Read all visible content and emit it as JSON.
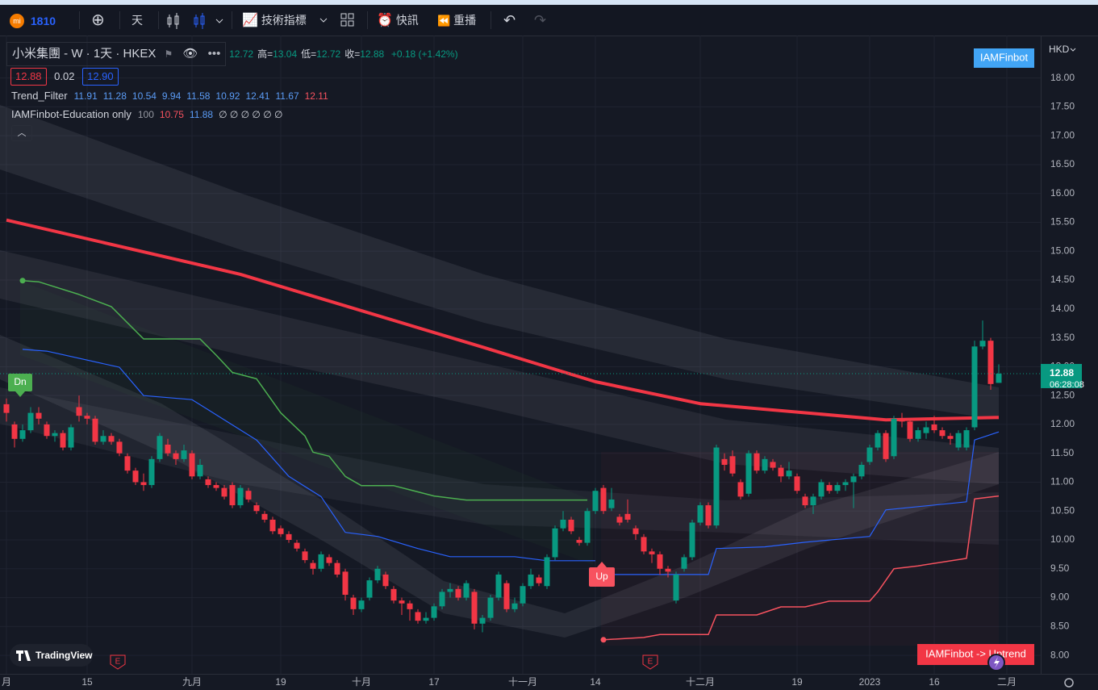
{
  "toolbar": {
    "symbol_icon": "mi",
    "symbol": "1810",
    "interval": "天",
    "indicators": "技術指標",
    "alerts": "快訊",
    "replay": "重播"
  },
  "legend": {
    "title": "小米集團 - W · 1天 · HKEX",
    "ohlc": [
      {
        "value": "12.72"
      },
      {
        "label": "高=",
        "value": "13.04"
      },
      {
        "label": "低=",
        "value": "12.72"
      },
      {
        "label": "收=",
        "value": "12.88"
      }
    ],
    "change": "+0.18 (+1.42%)",
    "bid": "12.88",
    "spread": "0.02",
    "ask": "12.90",
    "indicators": [
      {
        "name": "Trend_Filter",
        "values": [
          {
            "text": "11.91",
            "color": "#5b9cf6"
          },
          {
            "text": "11.28",
            "color": "#5b9cf6"
          },
          {
            "text": "10.54",
            "color": "#5b9cf6"
          },
          {
            "text": "9.94",
            "color": "#5b9cf6"
          },
          {
            "text": "11.58",
            "color": "#5b9cf6"
          },
          {
            "text": "10.92",
            "color": "#5b9cf6"
          },
          {
            "text": "12.41",
            "color": "#5b9cf6"
          },
          {
            "text": "11.67",
            "color": "#5b9cf6"
          },
          {
            "text": "12.11",
            "color": "#f7525f"
          }
        ]
      },
      {
        "name": "IAMFinbot-Education only",
        "values": [
          {
            "text": "100",
            "color": "#9598a1"
          },
          {
            "text": "10.75",
            "color": "#f7525f"
          },
          {
            "text": "11.88",
            "color": "#5b9cf6"
          },
          {
            "text": "∅ ∅ ∅ ∅ ∅ ∅",
            "color": "#d1d4dc"
          }
        ]
      }
    ]
  },
  "badge": "IAMFinbot",
  "status": "IAMFinbot -> Uptrend",
  "currency": "HKD",
  "watermark": "TradingView",
  "events": [
    "E",
    "E"
  ],
  "chart_data": {
    "type": "candlestick",
    "up_color": "#089981",
    "down_color": "#f23645",
    "grid": true,
    "ylim": [
      7.68,
      18.68
    ],
    "yticks": [
      {
        "value": 8,
        "label": "8.00"
      },
      {
        "value": 8.5,
        "label": "8.50"
      },
      {
        "value": 9,
        "label": "9.00"
      },
      {
        "value": 9.5,
        "label": "9.50"
      },
      {
        "value": 10,
        "label": "10.00"
      },
      {
        "value": 10.5,
        "label": "10.50"
      },
      {
        "value": 11,
        "label": "11.00"
      },
      {
        "value": 11.5,
        "label": "11.50"
      },
      {
        "value": 12,
        "label": "12.00"
      },
      {
        "value": 12.5,
        "label": "12.50"
      },
      {
        "value": 13,
        "label": "13.00"
      },
      {
        "value": 13.5,
        "label": "13.50"
      },
      {
        "value": 14,
        "label": "14.00"
      },
      {
        "value": 14.5,
        "label": "14.50"
      },
      {
        "value": 15,
        "label": "15.00"
      },
      {
        "value": 15.5,
        "label": "15.50"
      },
      {
        "value": 16,
        "label": "16.00"
      },
      {
        "value": 16.5,
        "label": "16.50"
      },
      {
        "value": 17,
        "label": "17.00"
      },
      {
        "value": 17.5,
        "label": "17.50"
      },
      {
        "value": 18,
        "label": "18.00"
      }
    ],
    "categories": [
      "月",
      null,
      null,
      null,
      null,
      null,
      null,
      null,
      null,
      null,
      "15",
      null,
      null,
      null,
      null,
      null,
      null,
      null,
      null,
      null,
      null,
      null,
      null,
      "九月",
      null,
      null,
      null,
      null,
      null,
      null,
      null,
      null,
      null,
      null,
      "19",
      null,
      null,
      null,
      null,
      null,
      null,
      null,
      null,
      null,
      "十月",
      null,
      null,
      null,
      null,
      null,
      null,
      null,
      null,
      "17",
      null,
      null,
      null,
      null,
      null,
      null,
      null,
      null,
      null,
      null,
      "十一月",
      null,
      null,
      null,
      null,
      null,
      null,
      null,
      null,
      "14",
      null,
      null,
      null,
      null,
      null,
      null,
      null,
      null,
      null,
      null,
      null,
      null,
      "十二月",
      null,
      null,
      null,
      null,
      null,
      null,
      null,
      null,
      null,
      null,
      null,
      "19",
      null,
      null,
      null,
      null,
      null,
      null,
      null,
      null,
      "2023",
      null,
      null,
      null,
      null,
      null,
      null,
      null,
      "16",
      null,
      null,
      null,
      null,
      null,
      null,
      null,
      null,
      "二月"
    ],
    "candles": [
      [
        12.35,
        12.45,
        12.05,
        12.2
      ],
      [
        12.0,
        12.05,
        11.6,
        11.75
      ],
      [
        11.75,
        12.0,
        11.7,
        11.9
      ],
      [
        11.9,
        12.3,
        11.85,
        12.2
      ],
      [
        12.2,
        12.3,
        12.0,
        12.1
      ],
      [
        12.0,
        12.05,
        11.75,
        11.8
      ],
      [
        11.8,
        11.9,
        11.7,
        11.85
      ],
      [
        11.85,
        11.9,
        11.55,
        11.6
      ],
      [
        11.6,
        12.0,
        11.55,
        11.95
      ],
      [
        12.3,
        12.5,
        12.05,
        12.15
      ],
      [
        12.15,
        12.2,
        12.0,
        12.1
      ],
      [
        12.1,
        12.15,
        11.65,
        11.7
      ],
      [
        11.7,
        11.9,
        11.65,
        11.8
      ],
      [
        11.8,
        11.85,
        11.65,
        11.7
      ],
      [
        11.7,
        11.75,
        11.45,
        11.5
      ],
      [
        11.45,
        11.5,
        11.15,
        11.2
      ],
      [
        11.2,
        11.25,
        10.95,
        11.0
      ],
      [
        11.0,
        11.15,
        10.85,
        10.95
      ],
      [
        10.95,
        11.45,
        10.9,
        11.4
      ],
      [
        11.4,
        11.85,
        11.35,
        11.8
      ],
      [
        11.65,
        11.75,
        11.45,
        11.5
      ],
      [
        11.5,
        11.55,
        11.3,
        11.4
      ],
      [
        11.4,
        11.65,
        11.35,
        11.55
      ],
      [
        11.5,
        11.55,
        11.05,
        11.1
      ],
      [
        11.1,
        11.4,
        11.05,
        11.3
      ],
      [
        11.05,
        11.1,
        10.9,
        10.95
      ],
      [
        10.95,
        11.0,
        10.85,
        10.9
      ],
      [
        10.9,
        10.95,
        10.7,
        10.75
      ],
      [
        10.95,
        11.0,
        10.55,
        10.6
      ],
      [
        10.6,
        10.95,
        10.55,
        10.9
      ],
      [
        10.85,
        10.9,
        10.65,
        10.7
      ],
      [
        10.6,
        10.65,
        10.45,
        10.5
      ],
      [
        10.45,
        10.5,
        10.3,
        10.35
      ],
      [
        10.35,
        10.4,
        10.1,
        10.15
      ],
      [
        10.2,
        10.25,
        10.05,
        10.1
      ],
      [
        10.1,
        10.15,
        9.95,
        10.0
      ],
      [
        9.95,
        10.0,
        9.8,
        9.85
      ],
      [
        9.8,
        9.85,
        9.6,
        9.65
      ],
      [
        9.6,
        9.65,
        9.4,
        9.5
      ],
      [
        9.5,
        9.8,
        9.45,
        9.75
      ],
      [
        9.7,
        9.75,
        9.55,
        9.6
      ],
      [
        9.6,
        9.65,
        9.35,
        9.4
      ],
      [
        9.45,
        9.5,
        8.95,
        9.05
      ],
      [
        9.0,
        9.05,
        8.7,
        8.8
      ],
      [
        8.8,
        9.0,
        8.75,
        8.95
      ],
      [
        9.0,
        9.35,
        8.95,
        9.3
      ],
      [
        9.3,
        9.55,
        9.25,
        9.5
      ],
      [
        9.4,
        9.45,
        9.15,
        9.2
      ],
      [
        9.15,
        9.2,
        8.9,
        8.95
      ],
      [
        8.95,
        9.0,
        8.7,
        8.9
      ],
      [
        8.9,
        8.95,
        8.6,
        8.8
      ],
      [
        8.75,
        8.8,
        8.55,
        8.6
      ],
      [
        8.6,
        8.75,
        8.55,
        8.65
      ],
      [
        8.65,
        8.9,
        8.6,
        8.85
      ],
      [
        8.85,
        9.15,
        8.8,
        9.1
      ],
      [
        9.1,
        9.25,
        9.0,
        9.15
      ],
      [
        9.15,
        9.2,
        8.95,
        9.0
      ],
      [
        9.0,
        9.3,
        8.95,
        9.25
      ],
      [
        9.1,
        9.15,
        8.45,
        8.55
      ],
      [
        8.55,
        8.7,
        8.4,
        8.65
      ],
      [
        8.65,
        9.05,
        8.6,
        9.0
      ],
      [
        9.0,
        9.45,
        8.95,
        9.4
      ],
      [
        9.25,
        9.3,
        8.75,
        8.8
      ],
      [
        8.8,
        9.0,
        8.75,
        8.9
      ],
      [
        8.9,
        9.25,
        8.85,
        9.2
      ],
      [
        9.2,
        9.5,
        9.15,
        9.4
      ],
      [
        9.35,
        9.4,
        9.2,
        9.25
      ],
      [
        9.2,
        9.75,
        9.15,
        9.7
      ],
      [
        9.7,
        10.25,
        9.65,
        10.2
      ],
      [
        10.2,
        10.5,
        10.15,
        10.35
      ],
      [
        10.35,
        10.4,
        10.1,
        10.15
      ],
      [
        10.0,
        10.05,
        9.9,
        9.95
      ],
      [
        9.95,
        10.55,
        9.9,
        10.5
      ],
      [
        10.5,
        10.9,
        10.45,
        10.85
      ],
      [
        10.9,
        10.95,
        10.45,
        10.5
      ],
      [
        10.55,
        10.9,
        10.5,
        10.7
      ],
      [
        10.4,
        10.45,
        10.25,
        10.3
      ],
      [
        10.45,
        10.7,
        10.3,
        10.35
      ],
      [
        10.2,
        10.25,
        10.0,
        10.1
      ],
      [
        10.05,
        10.1,
        9.75,
        9.8
      ],
      [
        9.8,
        9.85,
        9.6,
        9.75
      ],
      [
        9.75,
        9.8,
        9.4,
        9.5
      ],
      [
        9.5,
        9.55,
        9.35,
        9.45
      ],
      [
        8.95,
        9.45,
        8.9,
        9.4
      ],
      [
        9.5,
        9.75,
        9.45,
        9.7
      ],
      [
        9.7,
        10.35,
        9.65,
        10.3
      ],
      [
        10.3,
        10.65,
        10.25,
        10.6
      ],
      [
        10.6,
        10.65,
        10.2,
        10.25
      ],
      [
        10.25,
        11.65,
        10.2,
        11.6
      ],
      [
        11.4,
        11.5,
        11.2,
        11.3
      ],
      [
        11.45,
        11.55,
        11.1,
        11.15
      ],
      [
        11.0,
        11.05,
        10.7,
        10.75
      ],
      [
        10.8,
        11.55,
        10.75,
        11.5
      ],
      [
        11.5,
        11.55,
        11.15,
        11.2
      ],
      [
        11.2,
        11.45,
        11.15,
        11.4
      ],
      [
        11.35,
        11.4,
        11.2,
        11.25
      ],
      [
        11.25,
        11.3,
        11.0,
        11.1
      ],
      [
        11.1,
        11.35,
        11.05,
        11.2
      ],
      [
        11.1,
        11.15,
        10.8,
        10.85
      ],
      [
        10.75,
        10.8,
        10.55,
        10.6
      ],
      [
        10.6,
        10.8,
        10.45,
        10.75
      ],
      [
        10.75,
        11.05,
        10.7,
        11.0
      ],
      [
        10.95,
        11.0,
        10.8,
        10.85
      ],
      [
        10.85,
        11.0,
        10.8,
        10.95
      ],
      [
        10.95,
        11.05,
        10.85,
        11.0
      ],
      [
        11.0,
        11.15,
        10.55,
        11.1
      ],
      [
        11.1,
        11.35,
        11.05,
        11.3
      ],
      [
        11.35,
        11.65,
        11.3,
        11.6
      ],
      [
        11.6,
        11.9,
        11.55,
        11.85
      ],
      [
        11.85,
        11.9,
        11.35,
        11.4
      ],
      [
        11.45,
        12.15,
        11.4,
        12.1
      ],
      [
        12.1,
        12.2,
        11.95,
        12.05
      ],
      [
        12.05,
        12.1,
        11.7,
        11.75
      ],
      [
        11.75,
        11.95,
        11.7,
        11.9
      ],
      [
        11.85,
        12.05,
        11.75,
        11.95
      ],
      [
        12.0,
        12.15,
        11.85,
        11.9
      ],
      [
        11.9,
        11.95,
        11.75,
        11.8
      ],
      [
        11.8,
        11.85,
        11.65,
        11.75
      ],
      [
        11.6,
        11.9,
        11.55,
        11.85
      ],
      [
        11.6,
        11.95,
        11.55,
        11.9
      ],
      [
        11.95,
        13.45,
        11.9,
        13.35
      ],
      [
        13.35,
        13.8,
        13.3,
        13.45
      ],
      [
        13.45,
        13.5,
        12.6,
        12.7
      ],
      [
        12.72,
        13.04,
        12.72,
        12.88
      ],
      null
    ],
    "overlays": [
      {
        "color": "#f23645",
        "line_width": 4,
        "start_dot": false,
        "x": [
          0,
          29,
          59,
          73,
          86,
          109,
          123
        ],
        "values": [
          15.54,
          14.6,
          13.34,
          12.74,
          12.36,
          12.08,
          12.12
        ]
      },
      {
        "color": "#4caf50",
        "line_width": 1.5,
        "start_dot": true,
        "x": [
          2,
          4,
          9,
          13,
          17,
          24,
          26,
          28,
          31,
          34,
          37,
          38,
          40,
          42,
          44,
          48,
          53,
          57,
          72
        ],
        "values": [
          14.49,
          14.47,
          14.25,
          14.04,
          13.48,
          13.48,
          13.2,
          12.9,
          12.79,
          12.2,
          11.8,
          11.52,
          11.45,
          11.1,
          10.94,
          10.94,
          10.76,
          10.69,
          10.69
        ]
      },
      {
        "color": "#2962ff",
        "line_width": 1.2,
        "start_dot": false,
        "x": [
          2,
          5,
          14,
          17,
          23,
          27,
          31,
          35,
          39,
          42,
          46,
          51,
          55,
          63,
          67,
          73,
          73.5,
          74,
          87,
          88,
          94,
          99,
          107,
          109,
          119,
          120,
          123
        ],
        "values": [
          13.3,
          13.27,
          12.99,
          12.5,
          12.43,
          12.08,
          11.73,
          11.1,
          10.75,
          10.13,
          10.06,
          9.85,
          9.71,
          9.71,
          9.64,
          9.64,
          null,
          9.4,
          9.4,
          9.85,
          9.88,
          9.96,
          10.06,
          10.52,
          10.66,
          11.73,
          11.87
        ]
      },
      {
        "color": "#f7525f",
        "line_width": 1.5,
        "start_dot": true,
        "x": [
          74,
          79,
          81,
          87,
          88,
          93,
          96,
          99,
          102,
          107,
          108,
          110,
          113,
          119,
          120,
          123
        ],
        "values": [
          8.27,
          8.31,
          8.36,
          8.36,
          8.7,
          8.7,
          8.84,
          8.84,
          8.94,
          8.94,
          9.1,
          9.5,
          9.55,
          9.68,
          10.71,
          10.76
        ]
      }
    ],
    "signals": [
      "Dn",
      "Up"
    ],
    "price_tag": {
      "price": "12.88",
      "countdown": "06:28:08"
    }
  }
}
